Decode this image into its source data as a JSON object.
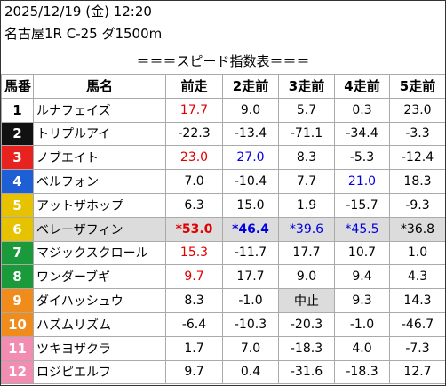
{
  "header": {
    "date": "2025/12/19 (金) 12:20",
    "race": "名古屋1R C-25 ダ1500m",
    "title": "＝＝＝スピード指数表＝＝＝"
  },
  "table": {
    "columns": [
      "馬番",
      "馬名",
      "前走",
      "2走前",
      "3走前",
      "4走前",
      "5走前"
    ],
    "rows": [
      [
        "1",
        "ルナフェイズ",
        "17.7",
        "9.0",
        "5.7",
        "0.3",
        "23.0"
      ],
      [
        "2",
        "トリプルアイ",
        "-22.3",
        "-13.4",
        "-71.1",
        "-34.4",
        "-3.3"
      ],
      [
        "3",
        "ノブエイト",
        "23.0",
        "27.0",
        "8.3",
        "-5.3",
        "-12.4"
      ],
      [
        "4",
        "ベルフォン",
        "7.0",
        "-10.4",
        "7.7",
        "21.0",
        "18.3"
      ],
      [
        "5",
        "アットザホップ",
        "6.3",
        "15.0",
        "1.9",
        "-15.7",
        "-9.3"
      ],
      [
        "6",
        "ベレーザフィン",
        "*53.0",
        "*46.4",
        "*39.6",
        "*45.5",
        "*36.8"
      ],
      [
        "7",
        "マジックスクロール",
        "15.3",
        "-11.7",
        "17.7",
        "10.7",
        "1.0"
      ],
      [
        "8",
        "ワンダーブギ",
        "9.7",
        "17.7",
        "9.0",
        "9.4",
        "4.3"
      ],
      [
        "9",
        "ダイハッシュウ",
        "8.3",
        "-1.0",
        "中止",
        "9.3",
        "14.3"
      ],
      [
        "10",
        "ハズムリズム",
        "-6.4",
        "-10.3",
        "-20.3",
        "-1.0",
        "-46.7"
      ],
      [
        "11",
        "ツキヨザクラ",
        "1.7",
        "7.0",
        "-18.3",
        "4.0",
        "-7.3"
      ],
      [
        "12",
        "ロジピエルフ",
        "9.7",
        "0.4",
        "-31.6",
        "-18.3",
        "12.7"
      ]
    ]
  }
}
